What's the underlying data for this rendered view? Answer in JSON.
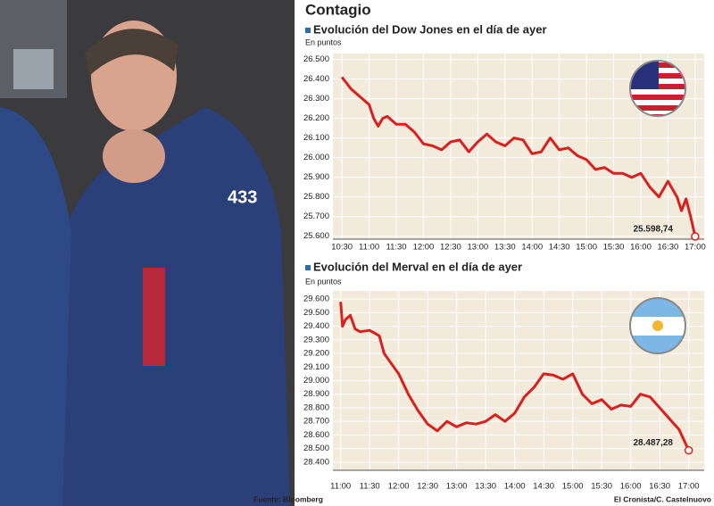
{
  "title": "Contagio",
  "source": "Fuente: Bloomberg",
  "credit": "El Cronista/C. Castelnuovo",
  "chart_data": [
    {
      "type": "line",
      "title": "Evolución del Dow Jones en el día de ayer",
      "y_label": "En puntos",
      "color": "#d9201f",
      "grid": true,
      "x": [
        630,
        635,
        640,
        650,
        660,
        665,
        670,
        675,
        680,
        690,
        700,
        710,
        720,
        730,
        740,
        750,
        760,
        770,
        780,
        790,
        800,
        810,
        820,
        830,
        840,
        850,
        860,
        870,
        880,
        890,
        900,
        910,
        920,
        930,
        940,
        950,
        960,
        970,
        980,
        990,
        1000,
        1005,
        1010,
        1015,
        1020
      ],
      "values": [
        26410,
        26380,
        26350,
        26310,
        26270,
        26200,
        26160,
        26200,
        26210,
        26170,
        26170,
        26130,
        26070,
        26060,
        26040,
        26080,
        26090,
        26030,
        26080,
        26120,
        26080,
        26060,
        26100,
        26090,
        26020,
        26030,
        26100,
        26040,
        26050,
        26010,
        25990,
        25940,
        25950,
        25920,
        25920,
        25900,
        25920,
        25850,
        25800,
        25880,
        25800,
        25730,
        25790,
        25700,
        25598.74
      ],
      "last_value": {
        "value": 25598.74,
        "label": "25.598,74"
      },
      "xlim": [
        620,
        1030
      ],
      "xticks": [
        {
          "value": 630,
          "label": "10:30"
        },
        {
          "value": 660,
          "label": "11:00"
        },
        {
          "value": 690,
          "label": "11:30"
        },
        {
          "value": 720,
          "label": "12:00"
        },
        {
          "value": 750,
          "label": "12:30"
        },
        {
          "value": 780,
          "label": "13:00"
        },
        {
          "value": 810,
          "label": "13:30"
        },
        {
          "value": 840,
          "label": "14:00"
        },
        {
          "value": 870,
          "label": "14:30"
        },
        {
          "value": 900,
          "label": "15:00"
        },
        {
          "value": 930,
          "label": "15:30"
        },
        {
          "value": 960,
          "label": "16:00"
        },
        {
          "value": 990,
          "label": "16:30"
        },
        {
          "value": 1020,
          "label": "17:00"
        }
      ],
      "ylim": [
        25585,
        26530
      ],
      "yticks": [
        {
          "value": 25600,
          "label": "25.600"
        },
        {
          "value": 25700,
          "label": "25.700"
        },
        {
          "value": 25800,
          "label": "25.800"
        },
        {
          "value": 25900,
          "label": "25.900"
        },
        {
          "value": 26000,
          "label": "26.000"
        },
        {
          "value": 26100,
          "label": "26.100"
        },
        {
          "value": 26200,
          "label": "26.200"
        },
        {
          "value": 26300,
          "label": "26.300"
        },
        {
          "value": 26400,
          "label": "26.400"
        },
        {
          "value": 26500,
          "label": "26.500"
        }
      ]
    },
    {
      "type": "line",
      "title": "Evolución del Merval en el día de ayer",
      "y_label": "En puntos",
      "color": "#d9201f",
      "grid": true,
      "x": [
        660,
        662,
        665,
        670,
        675,
        680,
        690,
        695,
        700,
        705,
        710,
        720,
        730,
        740,
        750,
        760,
        770,
        780,
        790,
        800,
        810,
        820,
        830,
        840,
        850,
        860,
        870,
        880,
        890,
        900,
        910,
        920,
        930,
        940,
        950,
        960,
        970,
        980,
        990,
        1000,
        1010,
        1020
      ],
      "values": [
        29580,
        29400,
        29450,
        29480,
        29380,
        29360,
        29370,
        29350,
        29330,
        29200,
        29150,
        29050,
        28900,
        28780,
        28680,
        28630,
        28700,
        28660,
        28690,
        28680,
        28700,
        28750,
        28700,
        28760,
        28880,
        28950,
        29050,
        29040,
        29010,
        29050,
        28900,
        28830,
        28860,
        28790,
        28820,
        28810,
        28900,
        28880,
        28800,
        28720,
        28640,
        28487.28
      ],
      "last_value": {
        "value": 28487.28,
        "label": "28.487,28"
      },
      "xlim": [
        652,
        1036
      ],
      "xticks": [
        {
          "value": 660,
          "label": "11:00"
        },
        {
          "value": 690,
          "label": "11:30"
        },
        {
          "value": 720,
          "label": "12:00"
        },
        {
          "value": 750,
          "label": "12:30"
        },
        {
          "value": 780,
          "label": "13:00"
        },
        {
          "value": 810,
          "label": "13:30"
        },
        {
          "value": 840,
          "label": "14:00"
        },
        {
          "value": 870,
          "label": "14:30"
        },
        {
          "value": 900,
          "label": "15:00"
        },
        {
          "value": 930,
          "label": "15:30"
        },
        {
          "value": 960,
          "label": "16:00"
        },
        {
          "value": 990,
          "label": "16:30"
        },
        {
          "value": 1020,
          "label": "17:00"
        }
      ],
      "ylim": [
        28340,
        29660
      ],
      "yticks": [
        {
          "value": 28400,
          "label": "28.400"
        },
        {
          "value": 28500,
          "label": "28.500"
        },
        {
          "value": 28600,
          "label": "28.600"
        },
        {
          "value": 28700,
          "label": "28.700"
        },
        {
          "value": 28800,
          "label": "28.800"
        },
        {
          "value": 28900,
          "label": "28.900"
        },
        {
          "value": 29000,
          "label": "29.000"
        },
        {
          "value": 29100,
          "label": "29.100"
        },
        {
          "value": 29200,
          "label": "29.200"
        },
        {
          "value": 29300,
          "label": "29.300"
        },
        {
          "value": 29400,
          "label": "29.400"
        },
        {
          "value": 29500,
          "label": "29.500"
        },
        {
          "value": 29600,
          "label": "29.600"
        }
      ]
    }
  ]
}
